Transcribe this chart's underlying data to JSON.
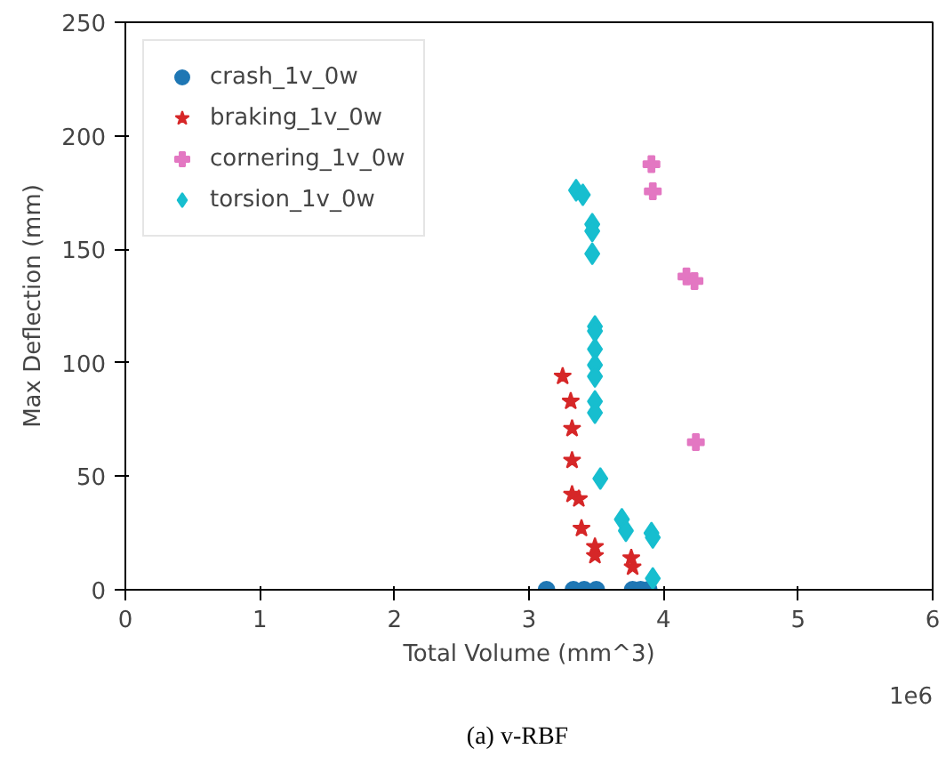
{
  "chart_data": {
    "type": "scatter",
    "xlabel": "Total Volume (mm^3)",
    "ylabel": "Max Deflection (mm)",
    "xlim": [
      0,
      6
    ],
    "ylim": [
      0,
      250
    ],
    "xticks": [
      0,
      1,
      2,
      3,
      4,
      5,
      6
    ],
    "yticks": [
      0,
      50,
      100,
      150,
      200,
      250
    ],
    "grid": false,
    "legend": "top left",
    "annotations": [
      "1e6",
      "(a) v-RBF"
    ],
    "series": [
      {
        "name": "crash_1v_0w",
        "color": "#1f77b4",
        "marker": "circle",
        "x": [
          3.13,
          3.33,
          3.41,
          3.5,
          3.77,
          3.83,
          3.89
        ],
        "values": [
          0,
          0,
          0,
          0,
          0,
          0,
          0
        ]
      },
      {
        "name": "braking_1v_0w",
        "color": "#d62728",
        "marker": "star",
        "x": [
          3.25,
          3.31,
          3.32,
          3.32,
          3.32,
          3.37,
          3.39,
          3.49,
          3.49,
          3.76,
          3.77
        ],
        "values": [
          94,
          83,
          71,
          57,
          42,
          40,
          27,
          19,
          15,
          14,
          10
        ]
      },
      {
        "name": "cornering_1v_0w",
        "color": "#e377c2",
        "marker": "cross",
        "x": [
          3.91,
          3.92,
          4.17,
          4.23,
          4.24
        ],
        "values": [
          187.5,
          175.5,
          138,
          136,
          65
        ]
      },
      {
        "name": "torsion_1v_0w",
        "color": "#17becf",
        "marker": "diamond",
        "x": [
          3.35,
          3.4,
          3.47,
          3.47,
          3.47,
          3.49,
          3.49,
          3.49,
          3.49,
          3.49,
          3.49,
          3.49,
          3.53,
          3.69,
          3.72,
          3.91,
          3.92,
          3.92
        ],
        "values": [
          176,
          174,
          161,
          158,
          148,
          116,
          114,
          106,
          99,
          94,
          83,
          78,
          49,
          31,
          26,
          25,
          23,
          5
        ]
      }
    ]
  }
}
